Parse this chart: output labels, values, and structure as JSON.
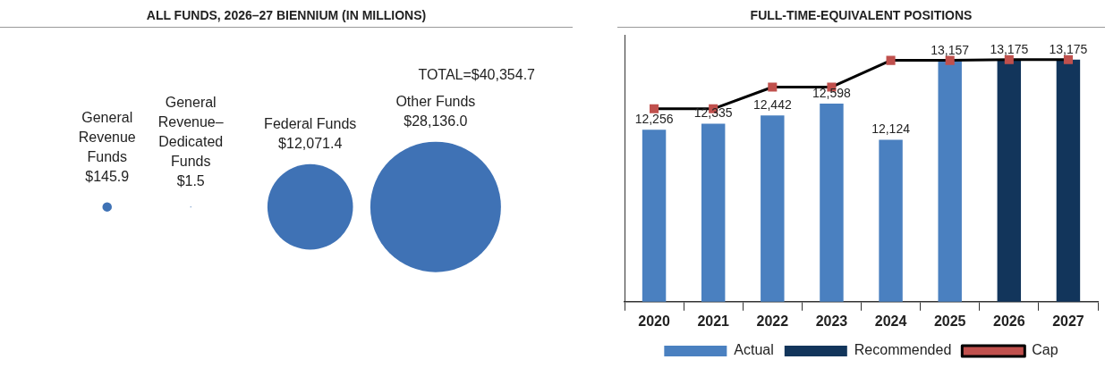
{
  "chart_data": [
    {
      "type": "other",
      "title": "ALL FUNDS, 2026–27 BIENNIUM (IN MILLIONS)",
      "categories": [
        "General Revenue Funds",
        "General Revenue–Dedicated Funds",
        "Federal Funds",
        "Other Funds"
      ],
      "values": [
        145.9,
        1.5,
        12071.4,
        28136.0
      ],
      "value_labels": [
        "$145.9",
        "$1.5",
        "$12,071.4",
        "$28,136.0"
      ],
      "color": "#3f72b5",
      "annotations": [
        "TOTAL=$40,354.7"
      ]
    },
    {
      "type": "bar",
      "title": "FULL-TIME-EQUIVALENT POSITIONS",
      "categories": [
        "2020",
        "2021",
        "2022",
        "2023",
        "2024",
        "2025",
        "2026",
        "2027"
      ],
      "series": [
        {
          "name": "Actual",
          "color": "#4a80c0",
          "values": [
            12256,
            12335,
            12442,
            12598,
            12124,
            13157,
            null,
            null
          ],
          "value_labels": [
            "12,256",
            "12,335",
            "12,442",
            "12,598",
            "12,124",
            "13,157",
            null,
            null
          ]
        },
        {
          "name": "Recommended",
          "color": "#12355b",
          "values": [
            null,
            null,
            null,
            null,
            null,
            null,
            13175,
            13175
          ],
          "value_labels": [
            null,
            null,
            null,
            null,
            null,
            null,
            "13,175",
            "13,175"
          ]
        },
        {
          "name": "Cap",
          "type": "line",
          "color": "#000000",
          "colors": [
            "#c0504d",
            "#c0504d",
            "#c0504d",
            "#c0504d",
            "#c0504d",
            "#c0504d",
            "#c0504d",
            "#c0504d"
          ],
          "marker": "square",
          "values": [
            12530,
            12530,
            12815,
            12815,
            13165,
            13165,
            13175,
            13175
          ]
        }
      ],
      "ylim": [
        10000,
        13500
      ],
      "tick_labels": "x",
      "legend": "bottom"
    }
  ]
}
